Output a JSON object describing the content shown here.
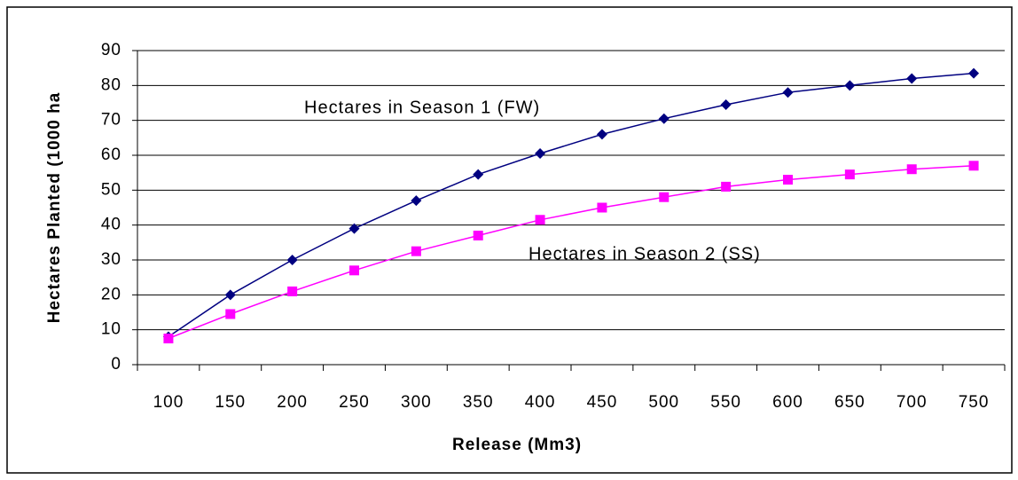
{
  "chart_data": {
    "type": "line",
    "x_label": "Release (Mm3)",
    "y_label": "Hectares Planted (1000 ha",
    "categories": [
      "100",
      "150",
      "200",
      "250",
      "300",
      "350",
      "400",
      "450",
      "500",
      "550",
      "600",
      "650",
      "700",
      "750"
    ],
    "series": [
      {
        "name": "Hectares in Season 1 (FW)",
        "color": "#000080",
        "marker": "diamond",
        "values": [
          8,
          20,
          30,
          39,
          47,
          54.5,
          60.5,
          66,
          70.5,
          74.5,
          78,
          80,
          82,
          83.5
        ]
      },
      {
        "name": "Hectares in Season 2 (SS)",
        "color": "#ff00ff",
        "marker": "square",
        "values": [
          7.5,
          14.5,
          21,
          27,
          32.5,
          37,
          41.5,
          45,
          48,
          51,
          53,
          54.5,
          56,
          57
        ]
      }
    ],
    "ylim": [
      0,
      90
    ],
    "yticks": [
      0,
      10,
      20,
      30,
      40,
      50,
      60,
      70,
      80,
      90
    ],
    "grid": true
  }
}
